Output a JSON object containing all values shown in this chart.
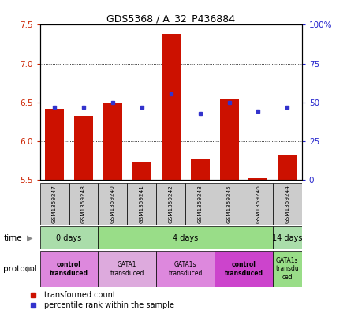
{
  "title": "GDS5368 / A_32_P436884",
  "samples": [
    "GSM1359247",
    "GSM1359248",
    "GSM1359240",
    "GSM1359241",
    "GSM1359242",
    "GSM1359243",
    "GSM1359245",
    "GSM1359246",
    "GSM1359244"
  ],
  "red_values": [
    6.42,
    6.32,
    6.5,
    5.72,
    7.38,
    5.76,
    6.55,
    5.52,
    5.82
  ],
  "blue_values": [
    6.44,
    6.44,
    6.5,
    6.44,
    6.61,
    6.35,
    6.5,
    6.38,
    6.44
  ],
  "ylim_left": [
    5.5,
    7.5
  ],
  "ylim_right": [
    0,
    100
  ],
  "yticks_left": [
    5.5,
    6.0,
    6.5,
    7.0,
    7.5
  ],
  "yticks_right": [
    0,
    25,
    50,
    75,
    100
  ],
  "ytick_labels_right": [
    "0",
    "25",
    "50",
    "75",
    "100%"
  ],
  "bar_color": "#cc1100",
  "dot_color": "#3333cc",
  "bar_bottom": 5.5,
  "time_groups": [
    {
      "label": "0 days",
      "start": 0,
      "end": 2,
      "color": "#aaddaa"
    },
    {
      "label": "4 days",
      "start": 2,
      "end": 8,
      "color": "#99dd88"
    },
    {
      "label": "14 days",
      "start": 8,
      "end": 9,
      "color": "#aaddaa"
    }
  ],
  "protocol_groups": [
    {
      "label": "control\ntransduced",
      "start": 0,
      "end": 2,
      "color": "#dd88dd",
      "bold": true
    },
    {
      "label": "GATA1\ntransduced",
      "start": 2,
      "end": 4,
      "color": "#ddaadd",
      "bold": false
    },
    {
      "label": "GATA1s\ntransduced",
      "start": 4,
      "end": 6,
      "color": "#dd88dd",
      "bold": false
    },
    {
      "label": "control\ntransduced",
      "start": 6,
      "end": 8,
      "color": "#cc44cc",
      "bold": true
    },
    {
      "label": "GATA1s\ntransdu\nced",
      "start": 8,
      "end": 9,
      "color": "#99dd88",
      "bold": false
    }
  ],
  "sample_box_color": "#cccccc",
  "left_tick_color": "#cc2200",
  "right_tick_color": "#2222cc",
  "n_samples": 9
}
